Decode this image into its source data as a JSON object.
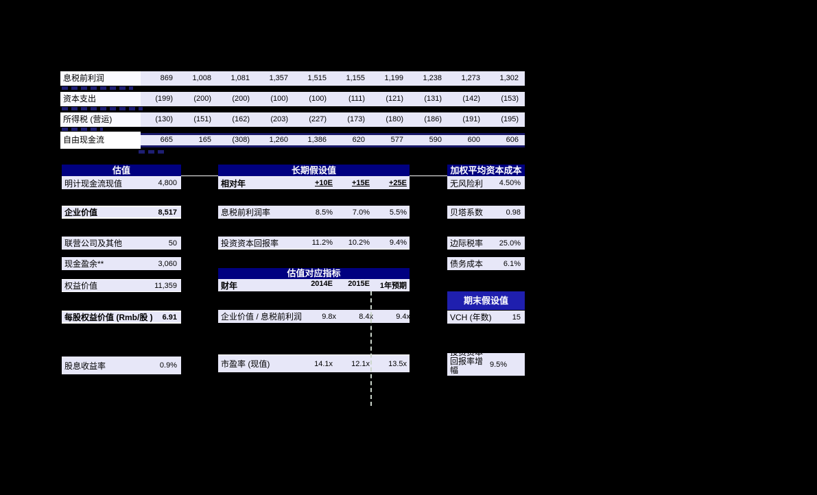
{
  "top_table": {
    "rows": [
      {
        "label": "息税前利润",
        "values": [
          "869",
          "1,008",
          "1,081",
          "1,357",
          "1,515",
          "1,155",
          "1,199",
          "1,238",
          "1,273",
          "1,302"
        ]
      },
      {
        "label": "资本支出",
        "values": [
          "(199)",
          "(200)",
          "(200)",
          "(100)",
          "(100)",
          "(111)",
          "(121)",
          "(131)",
          "(142)",
          "(153)"
        ]
      },
      {
        "label": "所得税 (营运)",
        "values": [
          "(130)",
          "(151)",
          "(162)",
          "(203)",
          "(227)",
          "(173)",
          "(180)",
          "(186)",
          "(191)",
          "(195)"
        ]
      },
      {
        "label": "自由现金流",
        "values": [
          "665",
          "165",
          "(308)",
          "1,260",
          "1,386",
          "620",
          "577",
          "590",
          "600",
          "606"
        ]
      }
    ]
  },
  "valuation_panel": {
    "header": "估值",
    "rows": [
      {
        "label": "明计现金流现值",
        "value": "4,800"
      },
      {
        "label": "企业价值",
        "value": "8,517"
      },
      {
        "label": "联营公司及其他",
        "value": "50"
      },
      {
        "label": "现金盈余**",
        "value": "3,060"
      },
      {
        "label": "权益价值",
        "value": "11,359"
      },
      {
        "label": "每股权益价值 (Rmb/股 )",
        "value": "6.91"
      },
      {
        "label": "股息收益率",
        "value": "0.9%"
      }
    ]
  },
  "longterm_panel": {
    "header": "长期假设值",
    "col_header": {
      "label": "相对年",
      "cols": [
        "+10E",
        "+15E",
        "+25E"
      ]
    },
    "rows": [
      {
        "label": "息税前利润率",
        "values": [
          "8.5%",
          "7.0%",
          "5.5%"
        ]
      },
      {
        "label": "投资资本回报率",
        "values": [
          "11.2%",
          "10.2%",
          "9.4%"
        ]
      }
    ]
  },
  "metrics_panel": {
    "header": "估值对应指标",
    "col_header": {
      "label": "财年",
      "cols": [
        "2014E",
        "2015E",
        "1年预期"
      ]
    },
    "rows": [
      {
        "label": "企业价值 / 息税前利润",
        "values": [
          "9.8x",
          "8.4x",
          "9.4x"
        ]
      },
      {
        "label": "市盈率 (现值)",
        "values": [
          "14.1x",
          "12.1x",
          "13.5x"
        ]
      }
    ]
  },
  "wacc_panel": {
    "header": "加权平均资本成本",
    "rows": [
      {
        "label": "无风险利",
        "value": "4.50%"
      },
      {
        "label": "贝塔系数",
        "value": "0.98"
      },
      {
        "label": "边际税率",
        "value": "25.0%"
      },
      {
        "label": "债务成本",
        "value": "6.1%"
      }
    ]
  },
  "terminal_panel": {
    "header": "期末假设值",
    "rows": [
      {
        "label": "VCH (年数)",
        "value": "15"
      },
      {
        "label": "投资资本回报率增幅",
        "value": "9.5%"
      }
    ]
  },
  "colors": {
    "background": "#000000",
    "header_navy": "#000080",
    "header_bright_blue": "#1f1fae",
    "row_lavender": "#e7e7f8",
    "label_white": "#fafaff",
    "text_black": "#000000",
    "header_text_white": "#ffffff"
  }
}
